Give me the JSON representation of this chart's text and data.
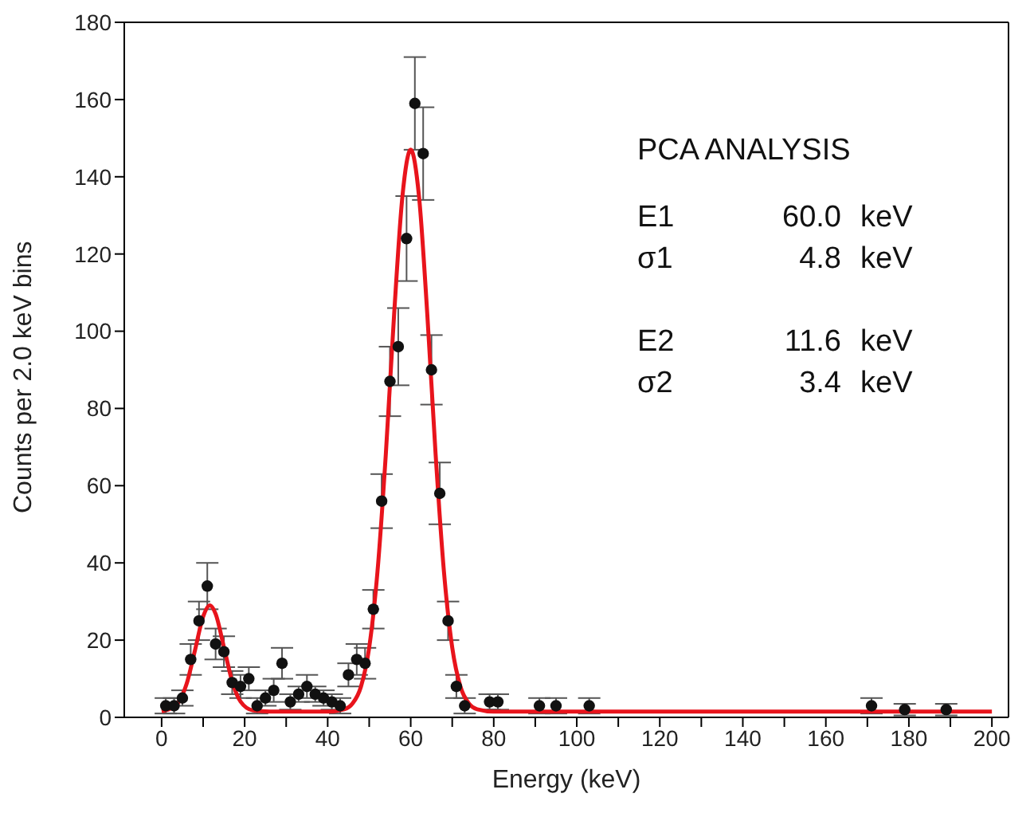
{
  "chart_data": {
    "type": "scatter",
    "xlabel": "Energy (keV)",
    "ylabel": "Counts per 2.0 keV bins",
    "xlim": [
      -9,
      204
    ],
    "ylim": [
      0,
      180
    ],
    "xticks": [
      0,
      {
        "value": 10,
        "label": null
      },
      20,
      {
        "value": 30,
        "label": null
      },
      40,
      {
        "value": 50,
        "label": null
      },
      60,
      {
        "value": 70,
        "label": null
      },
      80,
      {
        "value": 90,
        "label": null
      },
      100,
      {
        "value": 110,
        "label": null
      },
      120,
      {
        "value": 130,
        "label": null
      },
      140,
      {
        "value": 150,
        "label": null
      },
      160,
      {
        "value": 170,
        "label": null
      },
      180,
      {
        "value": 190,
        "label": null
      },
      200
    ],
    "yticks": [
      0,
      20,
      40,
      60,
      80,
      100,
      120,
      140,
      160,
      180
    ],
    "marker": "circle",
    "series": [
      {
        "color": "#111111",
        "x": [
          1,
          3,
          5,
          7,
          9,
          11,
          13,
          15,
          17,
          19,
          21,
          23,
          25,
          27,
          29,
          31,
          33,
          35,
          37,
          39,
          41,
          43,
          45,
          47,
          49,
          51,
          53,
          55,
          57,
          59,
          61,
          63,
          65,
          67,
          69,
          71,
          73,
          79,
          81,
          91,
          95,
          103,
          171,
          179,
          189
        ],
        "values": [
          3,
          3,
          5,
          15,
          25,
          34,
          19,
          17,
          9,
          8,
          10,
          3,
          5,
          7,
          14,
          4,
          6,
          8,
          6,
          5,
          4,
          3,
          11,
          15,
          14,
          28,
          56,
          87,
          96,
          124,
          159,
          146,
          90,
          58,
          25,
          8,
          3,
          4,
          4,
          3,
          3,
          3,
          3,
          2,
          2
        ],
        "errors": [
          2,
          2,
          2,
          4,
          5,
          6,
          4,
          4,
          3,
          3,
          3,
          2,
          2,
          3,
          4,
          2,
          2,
          3,
          2,
          2,
          2,
          2,
          3,
          4,
          4,
          5,
          7,
          9,
          10,
          11,
          12,
          12,
          9,
          8,
          5,
          3,
          2,
          2,
          2,
          2,
          2,
          2,
          2,
          1.5,
          1.5
        ]
      },
      {
        "type": "line",
        "color": "#e8141c",
        "marker": "none",
        "line_style": "solid",
        "x": [
          0,
          2,
          4,
          6,
          8,
          10,
          11.6,
          13,
          15,
          17,
          19,
          22,
          26,
          40,
          44,
          46,
          48,
          50,
          52,
          54,
          56,
          58,
          60,
          62,
          64,
          66,
          68,
          70,
          72,
          74,
          76,
          80,
          120,
          160,
          200
        ],
        "values": [
          1.6,
          2.2,
          3.8,
          8.6,
          17.2,
          26.1,
          29,
          26.8,
          18.2,
          9.3,
          4.1,
          1.8,
          1.5,
          1.5,
          2.1,
          3.6,
          7.9,
          18.1,
          37.8,
          68.1,
          104.3,
          134.9,
          147,
          134.9,
          104.3,
          68.1,
          37.8,
          18.1,
          7.9,
          3.6,
          2.1,
          1.5,
          1.5,
          1.5,
          1.5
        ]
      }
    ],
    "annotations": [
      "PCA ANALYSIS",
      "E1 60.0 keV",
      "σ1 4.8 keV",
      "E2 11.6 keV",
      "σ2 3.4 keV"
    ]
  }
}
